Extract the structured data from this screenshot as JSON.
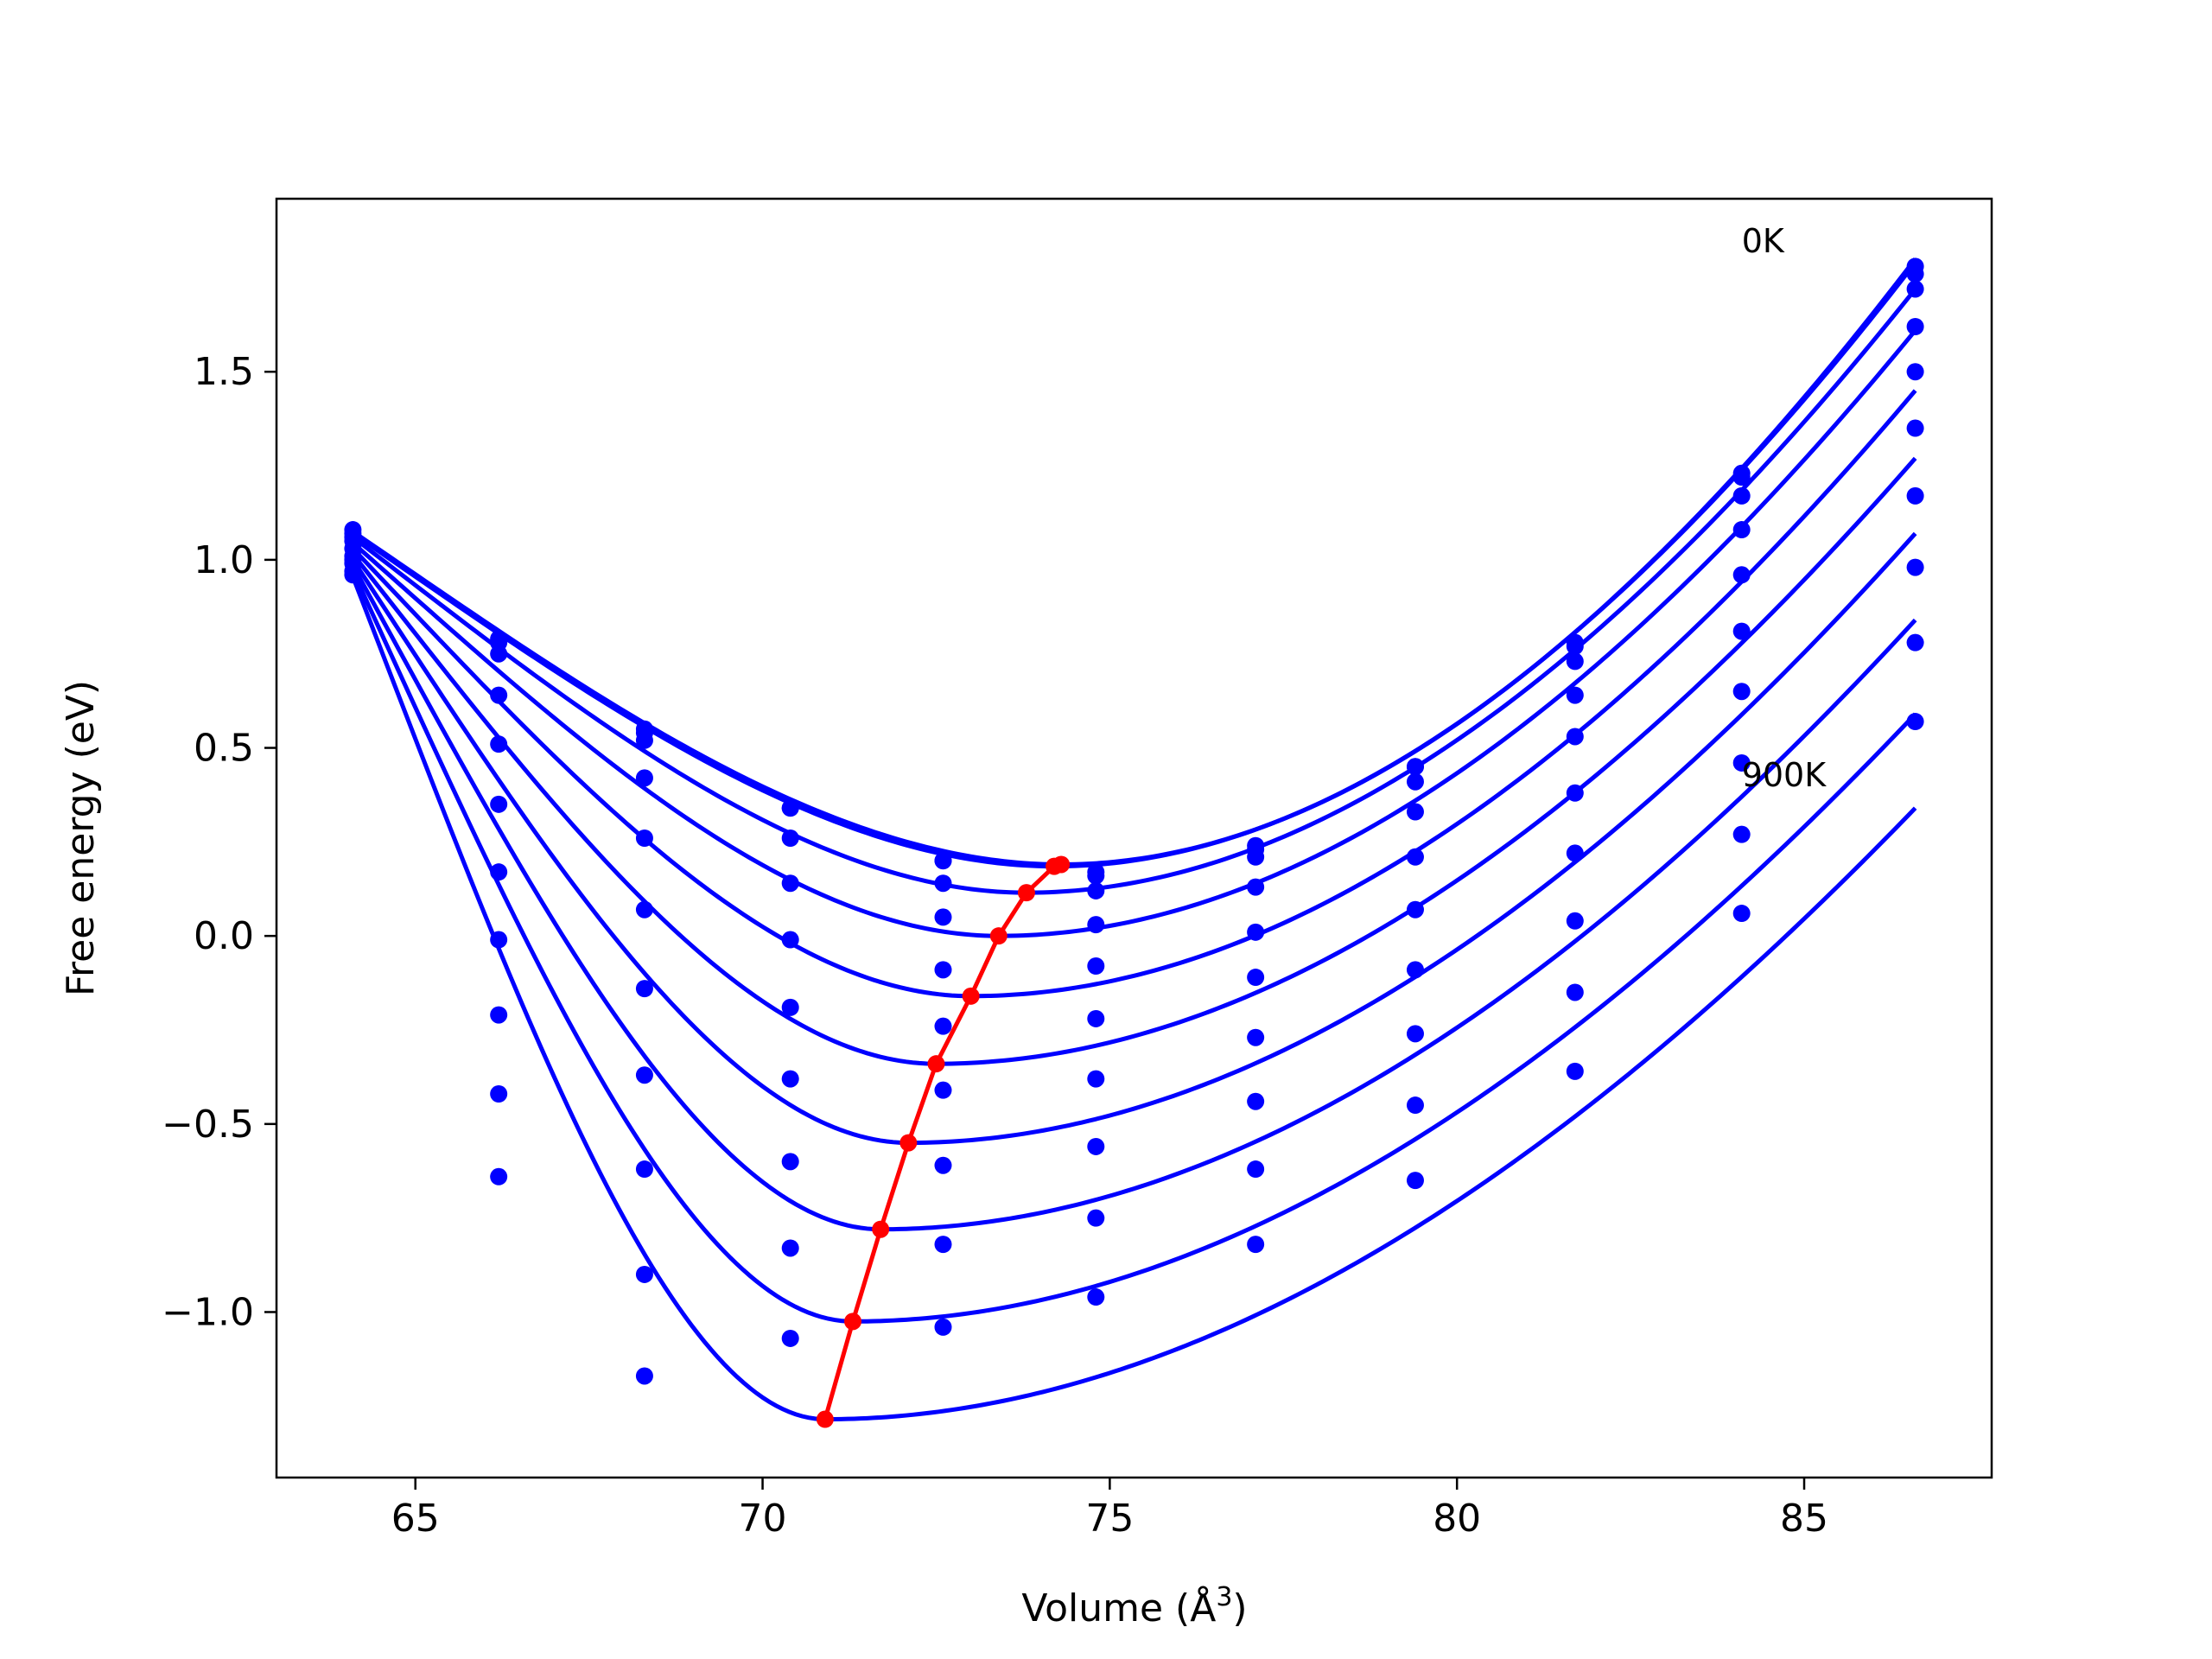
{
  "chart_data": {
    "type": "line",
    "xlabel": "Volume (Å",
    "xlabel_sup": "3",
    "xlabel_close": ")",
    "ylabel": "Free energy (eV)",
    "xlim": [
      63,
      87.7
    ],
    "ylim": [
      -1.44,
      1.96
    ],
    "x_ticks": [
      65,
      70,
      75,
      80,
      85
    ],
    "x_tick_labels": [
      "65",
      "70",
      "75",
      "80",
      "85"
    ],
    "y_ticks": [
      -1.0,
      -0.5,
      0.0,
      0.5,
      1.0,
      1.5
    ],
    "y_tick_labels": [
      "−1.0",
      "−0.5",
      "0.0",
      "0.5",
      "1.0",
      "1.5"
    ],
    "annotations": [
      {
        "text": "0K",
        "x": 84.1,
        "y": 1.85
      },
      {
        "text": "900K",
        "x": 84.1,
        "y": 0.43
      }
    ],
    "fit_color": "#0000ff",
    "data_point_color": "#0000ff",
    "minimum_curve_color": "#ff0000",
    "volumes": [
      64.1,
      66.2,
      68.3,
      70.4,
      72.6,
      74.8,
      77.1,
      79.4,
      81.7,
      84.1,
      86.6
    ],
    "series": [
      {
        "minimum": [
          74.3,
          0.19
        ],
        "fit_ends": [
          1.075,
          1.8
        ],
        "points": [
          1.08,
          0.79,
          0.55,
          0.34,
          0.2,
          0.16,
          0.24,
          0.45,
          0.78,
          1.23,
          1.78
        ]
      },
      {
        "minimum": [
          74.2,
          0.185
        ],
        "fit_ends": [
          1.07,
          1.79
        ],
        "points": [
          1.07,
          0.78,
          0.54,
          0.34,
          0.2,
          0.17,
          0.23,
          0.45,
          0.77,
          1.22,
          1.76
        ]
      },
      {
        "minimum": [
          73.8,
          0.115
        ],
        "fit_ends": [
          1.06,
          1.72
        ],
        "points": [
          1.06,
          0.75,
          0.52,
          0.26,
          0.14,
          0.12,
          0.21,
          0.41,
          0.73,
          1.17,
          1.72
        ]
      },
      {
        "minimum": [
          73.4,
          0.0
        ],
        "fit_ends": [
          1.045,
          1.61
        ],
        "points": [
          1.05,
          0.64,
          0.42,
          0.14,
          0.05,
          0.03,
          0.13,
          0.33,
          0.64,
          1.08,
          1.62
        ]
      },
      {
        "minimum": [
          73.0,
          -0.16
        ],
        "fit_ends": [
          1.03,
          1.45
        ],
        "points": [
          1.03,
          0.51,
          0.26,
          -0.01,
          -0.09,
          -0.08,
          0.01,
          0.21,
          0.53,
          0.96,
          1.5
        ]
      },
      {
        "minimum": [
          72.5,
          -0.34
        ],
        "fit_ends": [
          1.015,
          1.27
        ],
        "points": [
          1.01,
          0.35,
          0.07,
          -0.19,
          -0.24,
          -0.22,
          -0.11,
          0.07,
          0.38,
          0.81,
          1.35
        ]
      },
      {
        "minimum": [
          72.1,
          -0.55
        ],
        "fit_ends": [
          1.0,
          1.07
        ],
        "points": [
          1.0,
          0.17,
          -0.14,
          -0.38,
          -0.41,
          -0.38,
          -0.27,
          -0.09,
          0.22,
          0.65,
          1.17
        ]
      },
      {
        "minimum": [
          71.7,
          -0.78
        ],
        "fit_ends": [
          0.985,
          0.84
        ],
        "points": [
          0.99,
          -0.01,
          -0.37,
          -0.6,
          -0.61,
          -0.56,
          -0.44,
          -0.26,
          0.04,
          0.46,
          0.98
        ]
      },
      {
        "minimum": [
          71.3,
          -1.025
        ],
        "fit_ends": [
          0.97,
          0.59
        ],
        "points": [
          0.97,
          -0.21,
          -0.62,
          -0.83,
          -0.82,
          -0.75,
          -0.62,
          -0.45,
          -0.15,
          0.27,
          0.78
        ]
      },
      {
        "minimum": [
          70.9,
          -1.285
        ],
        "fit_ends": [
          0.955,
          0.34
        ],
        "points": [
          0.96,
          -0.42,
          -0.9,
          -1.07,
          -1.04,
          -0.96,
          -0.82,
          -0.65,
          -0.36,
          0.06,
          0.57
        ]
      }
    ],
    "minimum_curve": {
      "x": [
        74.3,
        74.2,
        73.8,
        73.4,
        73.0,
        72.5,
        72.1,
        71.7,
        71.3,
        70.9
      ],
      "y": [
        0.19,
        0.185,
        0.115,
        0.0,
        -0.16,
        -0.34,
        -0.55,
        -0.78,
        -1.025,
        -1.285
      ]
    },
    "outlier_points": [
      {
        "x": 66.2,
        "y": -0.64
      },
      {
        "x": 68.3,
        "y": -1.17
      }
    ]
  }
}
